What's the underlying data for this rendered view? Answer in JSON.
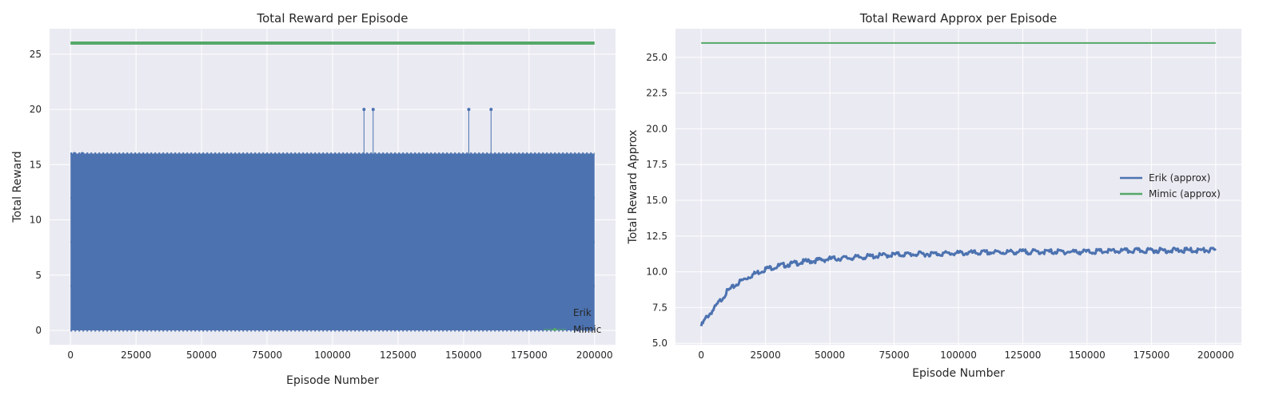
{
  "colors": {
    "plot_bg": "#eaeaf2",
    "grid": "#ffffff",
    "erik": "#4c72b0",
    "mimic": "#55a868",
    "text": "#262626"
  },
  "chart_data": [
    {
      "type": "line",
      "title": "Total Reward per Episode",
      "xlabel": "Episode Number",
      "ylabel": "Total Reward",
      "xlim": [
        -8000,
        208000
      ],
      "ylim": [
        -1.3,
        27.3
      ],
      "xticks": [
        0,
        25000,
        50000,
        75000,
        100000,
        125000,
        150000,
        175000,
        200000
      ],
      "yticks": [
        0,
        5,
        10,
        15,
        20,
        25
      ],
      "xtick_labels": [
        "0",
        "25000",
        "50000",
        "75000",
        "100000",
        "125000",
        "150000",
        "175000",
        "200000"
      ],
      "ytick_labels": [
        "0",
        "5",
        "10",
        "15",
        "20",
        "25"
      ],
      "grid": true,
      "legend_position": "lower right",
      "series": [
        {
          "name": "Erik",
          "color": "#4c72b0",
          "marker": "dot",
          "description_levels": [
            0,
            4,
            8,
            12,
            16
          ],
          "band_min": 0,
          "band_max": 16,
          "outliers": [
            {
              "x": 1500,
              "y": 16
            },
            {
              "x": 4500,
              "y": 16
            },
            {
              "x": 112000,
              "y": 20
            },
            {
              "x": 115500,
              "y": 20
            },
            {
              "x": 152000,
              "y": 20
            },
            {
              "x": 160500,
              "y": 20
            }
          ]
        },
        {
          "name": "Mimic",
          "color": "#55a868",
          "marker": "dot",
          "x": [
            0,
            200000
          ],
          "y": [
            26,
            26
          ]
        }
      ]
    },
    {
      "type": "line",
      "title": "Total Reward Approx per Episode",
      "xlabel": "Episode Number",
      "ylabel": "Total Reward Approx",
      "xlim": [
        -10000,
        210000
      ],
      "ylim": [
        4.9,
        27.0
      ],
      "xticks": [
        0,
        25000,
        50000,
        75000,
        100000,
        125000,
        150000,
        175000,
        200000
      ],
      "yticks": [
        5.0,
        7.5,
        10.0,
        12.5,
        15.0,
        17.5,
        20.0,
        22.5,
        25.0
      ],
      "xtick_labels": [
        "0",
        "25000",
        "50000",
        "75000",
        "100000",
        "125000",
        "150000",
        "175000",
        "200000"
      ],
      "ytick_labels": [
        "5.0",
        "7.5",
        "10.0",
        "12.5",
        "15.0",
        "17.5",
        "20.0",
        "22.5",
        "25.0"
      ],
      "grid": true,
      "legend_position": "center right",
      "series": [
        {
          "name": "Erik (approx)",
          "color": "#4c72b0",
          "x": [
            0,
            2000,
            5000,
            10000,
            15000,
            20000,
            25000,
            30000,
            40000,
            50000,
            60000,
            75000,
            100000,
            125000,
            150000,
            175000,
            200000
          ],
          "y": [
            6.2,
            6.8,
            7.4,
            8.6,
            9.3,
            9.8,
            10.2,
            10.4,
            10.7,
            10.9,
            11.0,
            11.2,
            11.3,
            11.4,
            11.4,
            11.5,
            11.5
          ]
        },
        {
          "name": "Mimic (approx)",
          "color": "#55a868",
          "x": [
            0,
            200000
          ],
          "y": [
            26,
            26
          ]
        }
      ]
    }
  ]
}
